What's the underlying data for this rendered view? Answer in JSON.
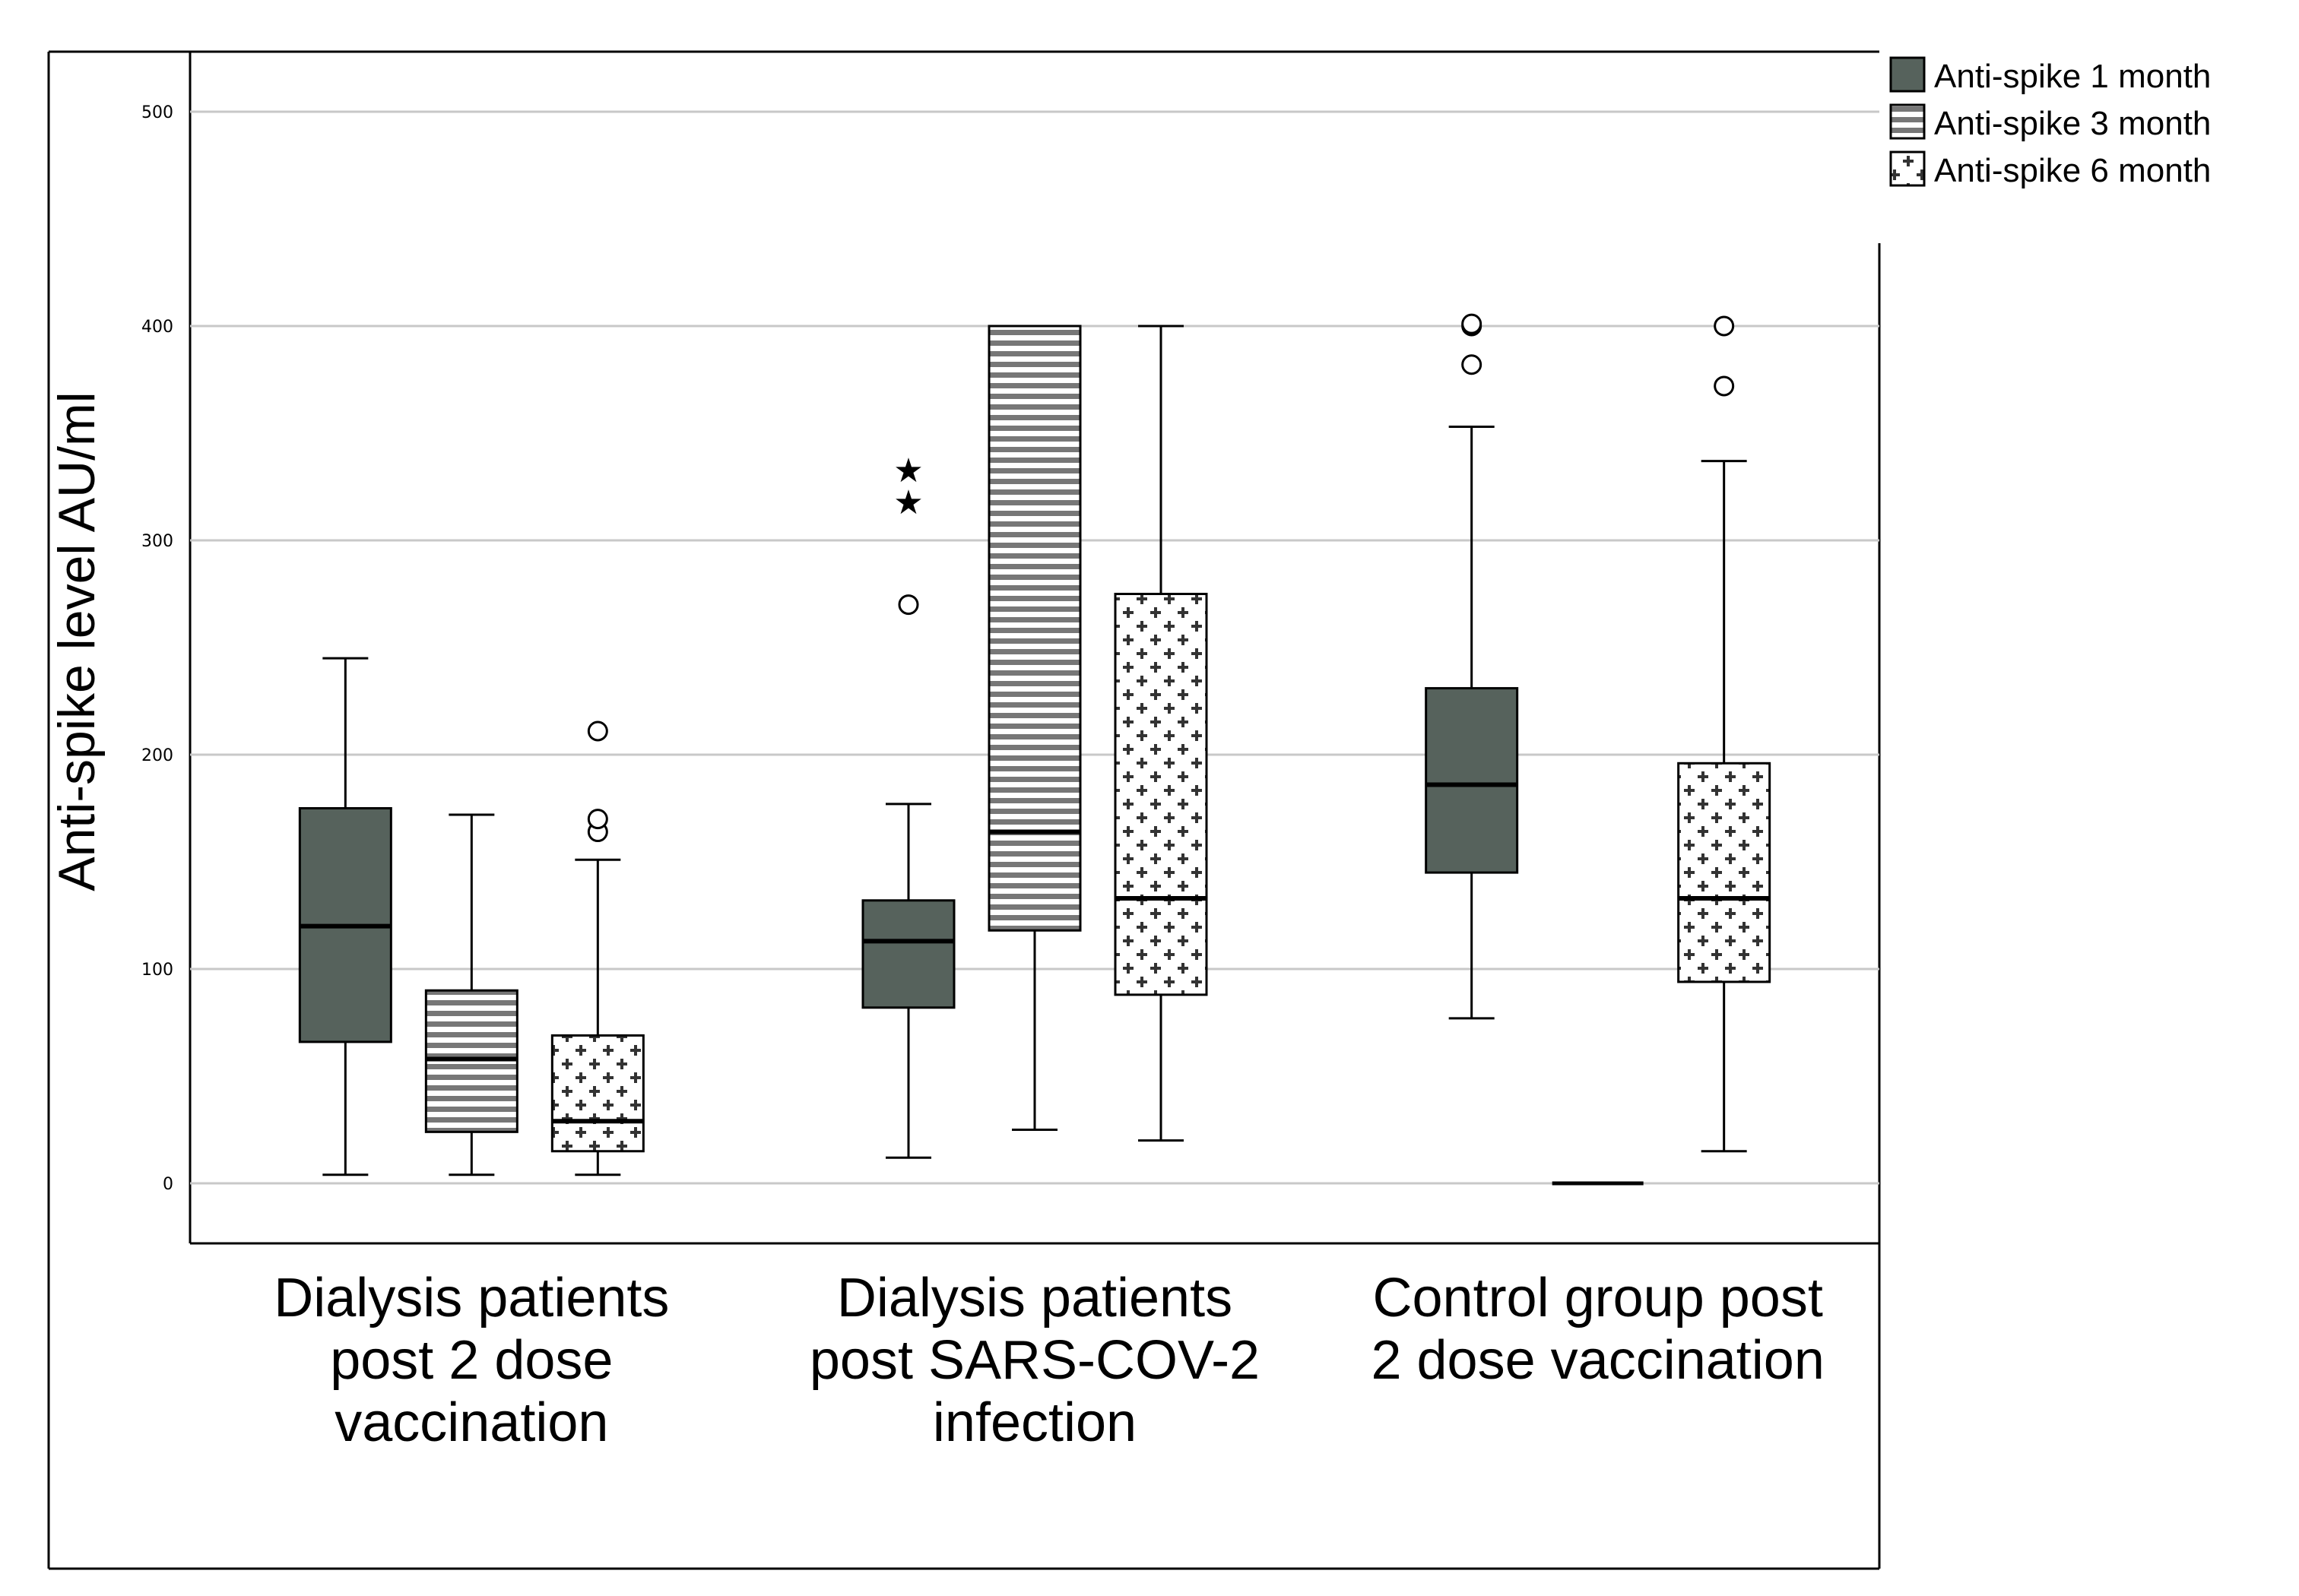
{
  "chart_data": {
    "type": "boxplot",
    "ylabel": "Anti-spike level AU/ml",
    "ylim": [
      -28,
      528
    ],
    "yticks": [
      0,
      100,
      200,
      300,
      400,
      500
    ],
    "ytick_labels": [
      "0",
      "100",
      "200",
      "300",
      "400",
      "500"
    ],
    "grid": "horizontal",
    "legend_position": "top-right",
    "categories": [
      {
        "lines": [
          "Dialysis patients",
          "post 2 dose",
          "vaccination"
        ]
      },
      {
        "lines": [
          "Dialysis patients",
          "post SARS-COV-2",
          "infection"
        ]
      },
      {
        "lines": [
          "Control group post",
          "2 dose vaccination"
        ]
      }
    ],
    "series": [
      {
        "name": "Anti-spike 1 month",
        "pattern": "solid",
        "fill": "#56625c",
        "boxes": [
          {
            "min": 4,
            "q1": 66,
            "median": 120,
            "q3": 175,
            "max": 245,
            "outliers": [],
            "extremes": []
          },
          {
            "min": 12,
            "q1": 82,
            "median": 113,
            "q3": 132,
            "max": 177,
            "outliers": [
              270
            ],
            "extremes": [
              318,
              333
            ]
          },
          {
            "min": 77,
            "q1": 145,
            "median": 186,
            "q3": 231,
            "max": 353,
            "outliers": [
              382,
              400,
              401
            ],
            "extremes": []
          }
        ]
      },
      {
        "name": "Anti-spike 3 month",
        "pattern": "horizontal-lines",
        "fill": "#ffffff",
        "boxes": [
          {
            "min": 4,
            "q1": 24,
            "median": 58,
            "q3": 90,
            "max": 172,
            "outliers": [],
            "extremes": []
          },
          {
            "min": 25,
            "q1": 118,
            "median": 164,
            "q3": 400,
            "max": 400,
            "outliers": [],
            "extremes": []
          },
          {
            "min": 0,
            "q1": 0,
            "median": 0,
            "q3": 0,
            "max": 0,
            "outliers": [],
            "extremes": []
          }
        ]
      },
      {
        "name": "Anti-spike 6 month",
        "pattern": "crosses",
        "fill": "#ffffff",
        "boxes": [
          {
            "min": 4,
            "q1": 15,
            "median": 29,
            "q3": 69,
            "max": 151,
            "outliers": [
              164,
              170,
              211
            ],
            "extremes": []
          },
          {
            "min": 20,
            "q1": 88,
            "median": 133,
            "q3": 275,
            "max": 400,
            "outliers": [],
            "extremes": []
          },
          {
            "min": 15,
            "q1": 94,
            "median": 133,
            "q3": 196,
            "max": 337,
            "outliers": [
              372,
              400
            ],
            "extremes": []
          }
        ]
      }
    ]
  }
}
